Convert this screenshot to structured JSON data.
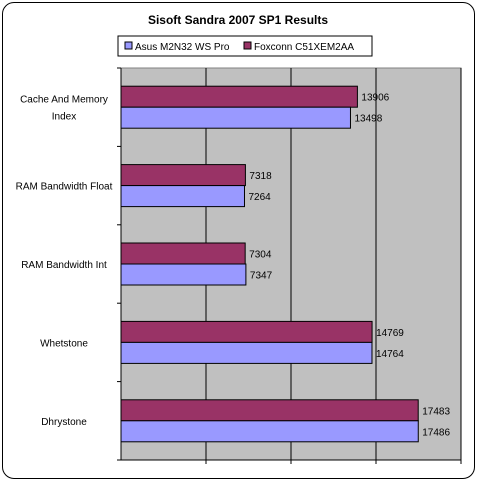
{
  "chart_data": {
    "type": "bar",
    "orientation": "horizontal",
    "title": "Sisoft Sandra 2007 SP1 Results",
    "categories": [
      "Cache And Memory Index",
      "RAM Bandwidth Float",
      "RAM Bandwidth Int",
      "Whetstone",
      "Dhrystone"
    ],
    "category_label_lines": [
      [
        "Cache And Memory",
        "Index"
      ],
      [
        "RAM Bandwidth Float"
      ],
      [
        "RAM Bandwidth Int"
      ],
      [
        "Whetstone"
      ],
      [
        "Dhrystone"
      ]
    ],
    "series": [
      {
        "name": "Asus M2N32 WS Pro",
        "values": [
          13498,
          7264,
          7347,
          14764,
          17486
        ],
        "color": "#9999ff"
      },
      {
        "name": "Foxconn C51XEM2AA",
        "values": [
          13906,
          7318,
          7304,
          14769,
          17483
        ],
        "color": "#993366"
      }
    ],
    "xlim": [
      0,
      20000
    ],
    "x_gridlines": [
      5000,
      10000,
      15000,
      20000
    ],
    "plot_background": "#c0c0c0",
    "legend_position": "top",
    "xlabel": "",
    "ylabel": ""
  }
}
